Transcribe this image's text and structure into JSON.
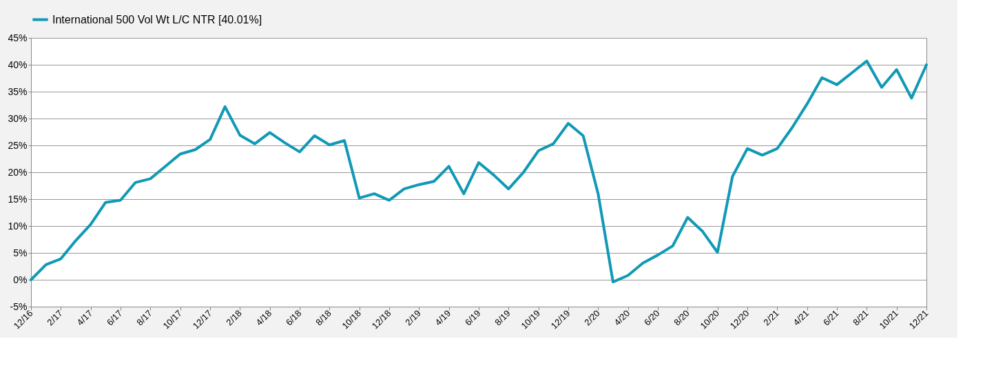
{
  "chart_data": {
    "type": "line",
    "categories": [
      "12/16",
      null,
      "2/17",
      null,
      "4/17",
      null,
      "6/17",
      null,
      "8/17",
      null,
      "10/17",
      null,
      "12/17",
      null,
      "2/18",
      null,
      "4/18",
      null,
      "6/18",
      null,
      "8/18",
      null,
      "10/18",
      null,
      "12/18",
      null,
      "2/19",
      null,
      "4/19",
      null,
      "6/19",
      null,
      "8/19",
      null,
      "10/19",
      null,
      "12/19",
      null,
      "2/20",
      null,
      "4/20",
      null,
      "6/20",
      null,
      "8/20",
      null,
      "10/20",
      null,
      "12/20",
      null,
      "2/21",
      null,
      "4/21",
      null,
      "6/21",
      null,
      "8/21",
      null,
      "10/21",
      null,
      "12/21"
    ],
    "series": [
      {
        "name": "International 500 Vol Wt L/C NTR [40.01%]",
        "color": "#1199b5",
        "values": [
          0,
          2.8,
          3.9,
          7.3,
          10.3,
          14.4,
          14.8,
          18.1,
          18.8,
          21.1,
          23.4,
          24.2,
          26.1,
          32.2,
          26.9,
          25.3,
          27.4,
          25.5,
          23.8,
          26.8,
          25.1,
          25.9,
          15.2,
          16.0,
          14.8,
          16.9,
          17.7,
          18.3,
          21.1,
          16.0,
          21.8,
          19.5,
          16.9,
          20.0,
          24.0,
          25.3,
          29.1,
          26.8,
          16.0,
          -0.4,
          0.8,
          3.1,
          4.6,
          6.3,
          11.6,
          9.0,
          5.1,
          19.2,
          24.4,
          23.2,
          24.4,
          28.3,
          32.7,
          37.6,
          36.3,
          38.5,
          40.7,
          35.8,
          39.1,
          33.8,
          40.0
        ]
      }
    ],
    "ylim": [
      -5,
      45
    ],
    "yticks": [
      {
        "value": -5,
        "label": "-5%"
      },
      {
        "value": 0,
        "label": "0%"
      },
      {
        "value": 5,
        "label": "5%"
      },
      {
        "value": 10,
        "label": "10%"
      },
      {
        "value": 15,
        "label": "15%"
      },
      {
        "value": 20,
        "label": "20%"
      },
      {
        "value": 25,
        "label": "25%"
      },
      {
        "value": 30,
        "label": "30%"
      },
      {
        "value": 35,
        "label": "35%"
      },
      {
        "value": 40,
        "label": "40%"
      },
      {
        "value": 45,
        "label": "45%"
      }
    ],
    "grid": "y",
    "legend": "top",
    "marker": "none",
    "line_style": "solid"
  }
}
